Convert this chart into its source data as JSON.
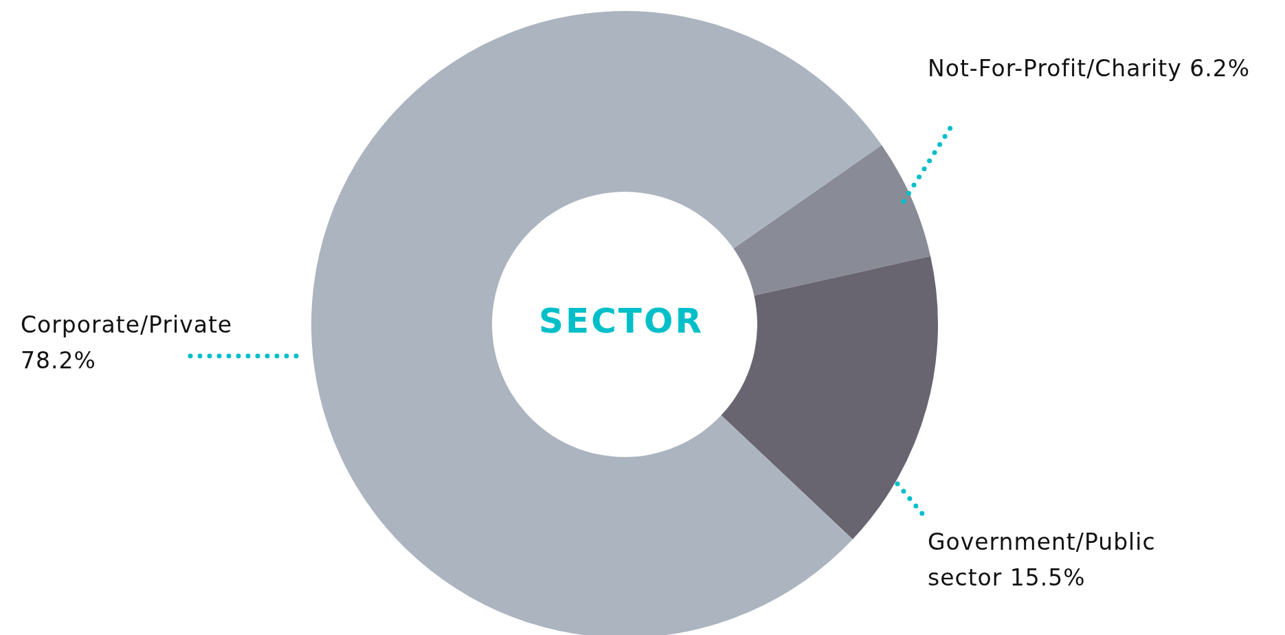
{
  "chart_data": {
    "type": "donut",
    "title": "SECTOR",
    "categories": [
      "Not-For-Profit/Charity",
      "Government/Public sector",
      "Corporate/Private"
    ],
    "values": [
      6.2,
      15.5,
      78.2
    ],
    "colors": [
      "#898c97",
      "#686570",
      "#abb4bf"
    ],
    "value_labels": [
      "6.2%",
      "15.5%",
      "78.2%"
    ]
  }
}
